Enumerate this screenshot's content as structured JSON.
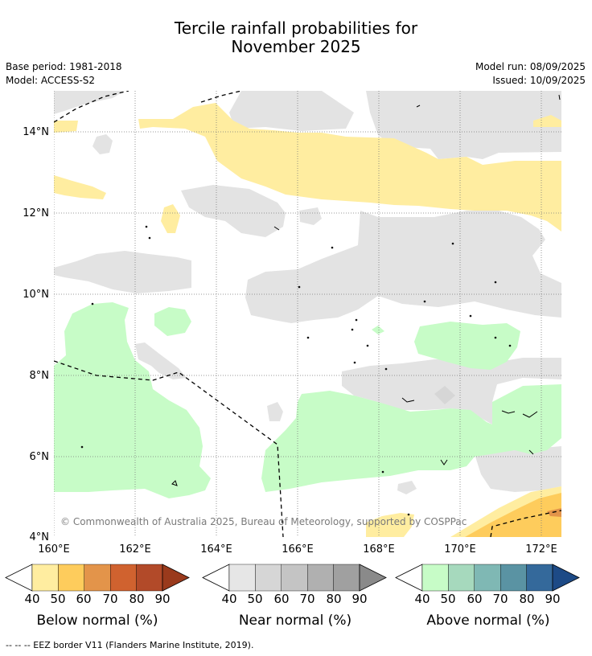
{
  "title": {
    "line1": "Tercile rainfall probabilities for",
    "line2": "November 2025"
  },
  "meta": {
    "base_period": "Base period: 1981-2018",
    "model": "Model: ACCESS-S2",
    "model_run": "Model run: 08/09/2025",
    "issued": "Issued: 10/09/2025"
  },
  "map": {
    "lon_range": [
      160,
      172.5
    ],
    "lat_range": [
      4,
      15
    ],
    "lon_ticks": [
      "160°E",
      "162°E",
      "164°E",
      "166°E",
      "168°E",
      "170°E",
      "172°E"
    ],
    "lat_ticks": [
      "4°N",
      "6°N",
      "8°N",
      "10°N",
      "12°N",
      "14°N"
    ],
    "grid": true,
    "copyright": "© Commonwealth of Australia 2025, Bureau of Meteorology, supported by COSPPac"
  },
  "colors": {
    "below": [
      "#ffeda0",
      "#fecc5c",
      "#e3944a",
      "#d0622f",
      "#b24a29",
      "#9a3a1c"
    ],
    "near": [
      "#e6e6e6",
      "#d6d6d6",
      "#c4c4c4",
      "#b0b0b0",
      "#a0a0a0",
      "#8a8a8a"
    ],
    "above": [
      "#c7fcc7",
      "#a6d9bd",
      "#7fb8b4",
      "#5a93a3",
      "#34699b",
      "#1d4a86"
    ]
  },
  "legend": {
    "ticks": [
      "40",
      "50",
      "60",
      "70",
      "80",
      "90"
    ],
    "below_label": "Below normal (%)",
    "near_label": "Near normal (%)",
    "above_label": "Above normal (%)"
  },
  "footer": "--  --  -- EEZ border V11 (Flanders Marine Institute, 2019)."
}
